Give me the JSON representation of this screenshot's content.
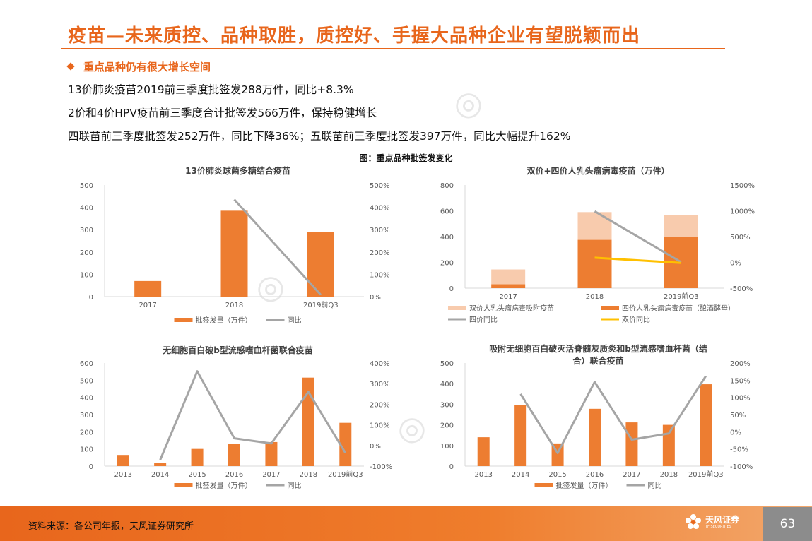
{
  "title": "疫苗—未来质控、品种取胜，质控好、手握大品种企业有望脱颖而出",
  "bullet": "重点品种仍有很大增长空间",
  "lines": [
    "13价肺炎疫苗2019前三季度批签发288万件，同比+8.3%",
    "2价和4价HPV疫苗前三季度合计批签发566万件，保持稳健增长",
    "四联苗前三季度批签发252万件，同比下降36%；五联苗前三季度批签发397万件，同比大幅提升162%"
  ],
  "figure_caption": "图：重点品种批签发变化",
  "footer": {
    "source": "资料来源：各公司年报，天风证券研究所",
    "page": "63",
    "logo_cn": "天风证券",
    "logo_en": "TF SECURITIES"
  },
  "colors": {
    "orange": "#ed7d31",
    "light_orange": "#f8cbad",
    "gray": "#a5a5a5",
    "yellow": "#ffc000",
    "accent": "#e8661c"
  },
  "chart_data": [
    {
      "type": "bar",
      "title": "13价肺炎球菌多糖结合疫苗",
      "categories": [
        "2017",
        "2018",
        "2019前Q3"
      ],
      "ylim": [
        0,
        500
      ],
      "yticks": [
        0,
        100,
        200,
        300,
        400,
        500
      ],
      "yticklabels": [
        "0",
        "100",
        "200",
        "300",
        "400",
        "500"
      ],
      "y2lim": [
        0,
        5
      ],
      "y2ticks": [
        0,
        1,
        2,
        3,
        4,
        5
      ],
      "y2ticklabels": [
        "0%",
        "100%",
        "200%",
        "300%",
        "400%",
        "500%"
      ],
      "series": [
        {
          "name": "批签发量（万件）",
          "kind": "bar",
          "values": [
            70,
            385,
            288
          ],
          "color": "#ed7d31"
        },
        {
          "name": "同比",
          "kind": "line",
          "axis": "y2",
          "values": [
            null,
            4.35,
            0.083
          ],
          "color": "#a5a5a5"
        }
      ],
      "legend": [
        "批签发量（万件）",
        "同比"
      ],
      "legend_position": "bottom"
    },
    {
      "type": "bar",
      "stacked": true,
      "title": "双价+四价人乳头瘤病毒疫苗（万件）",
      "categories": [
        "2017",
        "2018",
        "2019前Q3"
      ],
      "ylim": [
        0,
        800
      ],
      "yticks": [
        0,
        200,
        400,
        600,
        800
      ],
      "yticklabels": [
        "0",
        "200",
        "400",
        "600",
        "800"
      ],
      "y2lim": [
        -5,
        15
      ],
      "y2ticks": [
        -5,
        0,
        5,
        10,
        15
      ],
      "y2ticklabels": [
        "-500%",
        "0%",
        "500%",
        "1000%",
        "1500%"
      ],
      "series": [
        {
          "name": "四价人乳头瘤病毒疫苗（酿酒酵母）",
          "kind": "bar",
          "values": [
            30,
            375,
            395
          ],
          "color": "#ed7d31"
        },
        {
          "name": "双价人乳头瘤病毒吸附疫苗",
          "kind": "bar",
          "values": [
            115,
            215,
            170
          ],
          "color": "#f8cbad"
        },
        {
          "name": "四价同比",
          "kind": "line",
          "axis": "y2",
          "values": [
            null,
            9.9,
            0.05
          ],
          "color": "#a5a5a5"
        },
        {
          "name": "双价同比",
          "kind": "line",
          "axis": "y2",
          "values": [
            null,
            0.9,
            -0.1
          ],
          "color": "#ffc000"
        }
      ],
      "legend": [
        "双价人乳头瘤病毒吸附疫苗",
        "四价人乳头瘤病毒疫苗（酿酒酵母）",
        "四价同比",
        "双价同比"
      ],
      "legend_position": "bottom"
    },
    {
      "type": "bar",
      "title": "无细胞百白破b型流感嗜血杆菌联合疫苗",
      "categories": [
        "2013",
        "2014",
        "2015",
        "2016",
        "2017",
        "2018",
        "2019前Q3"
      ],
      "ylim": [
        0,
        600
      ],
      "yticks": [
        0,
        100,
        200,
        300,
        400,
        500,
        600
      ],
      "yticklabels": [
        "0",
        "100",
        "200",
        "300",
        "400",
        "500",
        "600"
      ],
      "y2lim": [
        -1,
        4
      ],
      "y2ticks": [
        -1,
        0,
        1,
        2,
        3,
        4
      ],
      "y2ticklabels": [
        "-100%",
        "0%",
        "100%",
        "200%",
        "300%",
        "400%"
      ],
      "series": [
        {
          "name": "批签发量（万件）",
          "kind": "bar",
          "values": [
            65,
            20,
            100,
            130,
            140,
            515,
            252
          ],
          "color": "#ed7d31"
        },
        {
          "name": "同比",
          "kind": "line",
          "axis": "y2",
          "values": [
            null,
            -0.7,
            3.6,
            0.35,
            0.1,
            2.6,
            -0.36
          ],
          "color": "#a5a5a5"
        }
      ],
      "legend": [
        "批签发量（万件）",
        "同比"
      ],
      "legend_position": "bottom"
    },
    {
      "type": "bar",
      "title": "吸附无细胞百白破灭活脊髓灰质炎和b型流感嗜血杆菌（结合）联合疫苗",
      "title_lines": [
        "吸附无细胞百白破灭活脊髓灰质炎和b型流感嗜血杆菌（结",
        "合）联合疫苗"
      ],
      "categories": [
        "2013",
        "2014",
        "2015",
        "2016",
        "2017",
        "2018",
        "2019前Q3"
      ],
      "ylim": [
        0,
        500
      ],
      "yticks": [
        0,
        100,
        200,
        300,
        400,
        500
      ],
      "yticklabels": [
        "0",
        "100",
        "200",
        "300",
        "400",
        "500"
      ],
      "y2lim": [
        -1,
        2
      ],
      "y2ticks": [
        -1,
        -0.5,
        0,
        0.5,
        1,
        1.5,
        2
      ],
      "y2ticklabels": [
        "-100%",
        "-50%",
        "0%",
        "50%",
        "100%",
        "150%",
        "200%"
      ],
      "series": [
        {
          "name": "批签发量（万件）",
          "kind": "bar",
          "values": [
            140,
            295,
            110,
            278,
            212,
            200,
            397
          ],
          "color": "#ed7d31"
        },
        {
          "name": "同比",
          "kind": "line",
          "axis": "y2",
          "values": [
            null,
            1.1,
            -0.62,
            1.45,
            -0.23,
            -0.05,
            1.62
          ],
          "color": "#a5a5a5"
        }
      ],
      "legend": [
        "批签发量（万件）",
        "同比"
      ],
      "legend_position": "bottom"
    }
  ]
}
